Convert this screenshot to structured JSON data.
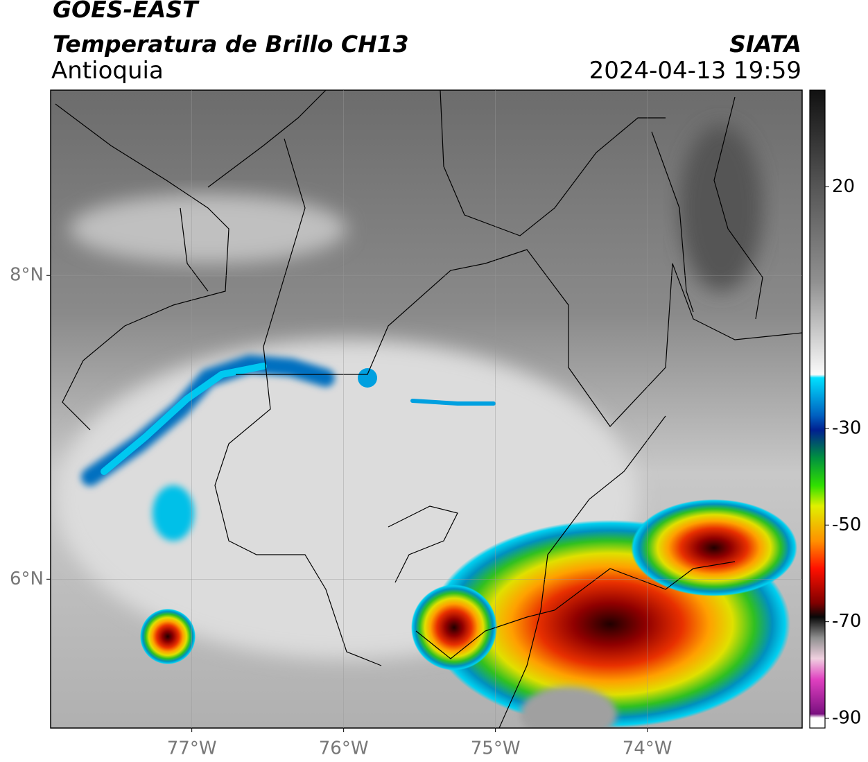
{
  "header": {
    "title": "GOES-EAST",
    "subtitle": "Temperatura de Brillo CH13",
    "region": "Antioquia",
    "source": "SIATA",
    "datetime": "2024-04-13 19:59"
  },
  "map": {
    "xlim": [
      -77.93,
      -72.98
    ],
    "ylim": [
      5.02,
      9.22
    ],
    "grid": true,
    "xticks": [
      {
        "value": -77,
        "label": "77°W"
      },
      {
        "value": -76,
        "label": "76°W"
      },
      {
        "value": -75,
        "label": "75°W"
      },
      {
        "value": -74,
        "label": "74°W"
      }
    ],
    "yticks": [
      {
        "value": 8,
        "label": "8°N"
      },
      {
        "value": 6,
        "label": "6°N"
      }
    ]
  },
  "colorbar": {
    "lim": [
      40,
      -92
    ],
    "ticks": [
      20,
      -30,
      -50,
      -70,
      -90
    ]
  }
}
